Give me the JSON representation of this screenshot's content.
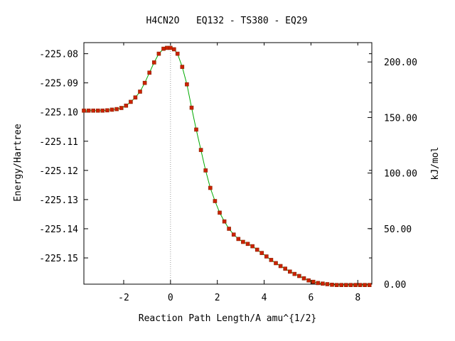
{
  "chart_data": {
    "type": "line",
    "title": "H4CN2O   EQ132 - TS380 - EQ29",
    "xlabel": "Reaction Path Length/A amu^{1/2}",
    "ylabel": "Energy/Hartree",
    "y2label": "kJ/mol",
    "xlim": [
      -3.7,
      8.6
    ],
    "ylim": [
      -225.159,
      -225.0762
    ],
    "y2lim": [
      0.0,
      217.4
    ],
    "x_ticks": [
      -2,
      0,
      2,
      4,
      6,
      8
    ],
    "x_tick_labels": [
      "-2",
      "0",
      "2",
      "4",
      "6",
      "8"
    ],
    "y_ticks": [
      -225.08,
      -225.09,
      -225.1,
      -225.11,
      -225.12,
      -225.13,
      -225.14,
      -225.15
    ],
    "y_tick_labels": [
      "-225.08",
      "-225.09",
      "-225.10",
      "-225.11",
      "-225.12",
      "-225.13",
      "-225.14",
      "-225.15"
    ],
    "y2_ticks": [
      0,
      50,
      100,
      150,
      200
    ],
    "y2_tick_labels": [
      "0.00",
      "50.00",
      "100.00",
      "150.00",
      "200.00"
    ],
    "ts_marker_x": 0,
    "grid": false,
    "colors": {
      "line": "#00aa00",
      "marker": "#cc2200",
      "marker_edge": "#882200",
      "ts_line": "#999999"
    },
    "series": [
      {
        "x": [
          -3.7,
          -3.5,
          -3.3,
          -3.1,
          -2.9,
          -2.7,
          -2.5,
          -2.3,
          -2.1,
          -1.9,
          -1.7,
          -1.5,
          -1.3,
          -1.1,
          -0.9,
          -0.7,
          -0.5,
          -0.3,
          -0.15,
          0.0,
          0.15,
          0.3,
          0.5,
          0.7,
          0.9,
          1.1,
          1.3,
          1.5,
          1.7,
          1.9,
          2.1,
          2.3,
          2.5,
          2.7,
          2.9,
          3.1,
          3.3,
          3.5,
          3.7,
          3.9,
          4.1,
          4.3,
          4.5,
          4.7,
          4.9,
          5.1,
          5.3,
          5.5,
          5.7,
          5.9,
          6.1,
          6.3,
          6.5,
          6.7,
          6.9,
          7.1,
          7.3,
          7.5,
          7.7,
          7.9,
          8.1,
          8.3,
          8.5
        ],
        "y": [
          -225.0995,
          -225.0995,
          -225.0995,
          -225.0995,
          -225.0995,
          -225.0994,
          -225.0992,
          -225.099,
          -225.0986,
          -225.0978,
          -225.0965,
          -225.095,
          -225.093,
          -225.09,
          -225.0865,
          -225.083,
          -225.08,
          -225.0783,
          -225.078,
          -225.078,
          -225.0785,
          -225.08,
          -225.0845,
          -225.0905,
          -225.0985,
          -225.106,
          -225.113,
          -225.12,
          -225.126,
          -225.1305,
          -225.1345,
          -225.1375,
          -225.14,
          -225.142,
          -225.1435,
          -225.1445,
          -225.1452,
          -225.146,
          -225.1472,
          -225.1483,
          -225.1495,
          -225.1507,
          -225.1518,
          -225.1528,
          -225.1537,
          -225.1547,
          -225.1555,
          -225.1562,
          -225.157,
          -225.1577,
          -225.1582,
          -225.1586,
          -225.1588,
          -225.159,
          -225.1592,
          -225.1593,
          -225.1593,
          -225.1593,
          -225.1593,
          -225.1593,
          -225.1593,
          -225.1593,
          -225.1593
        ]
      }
    ]
  }
}
